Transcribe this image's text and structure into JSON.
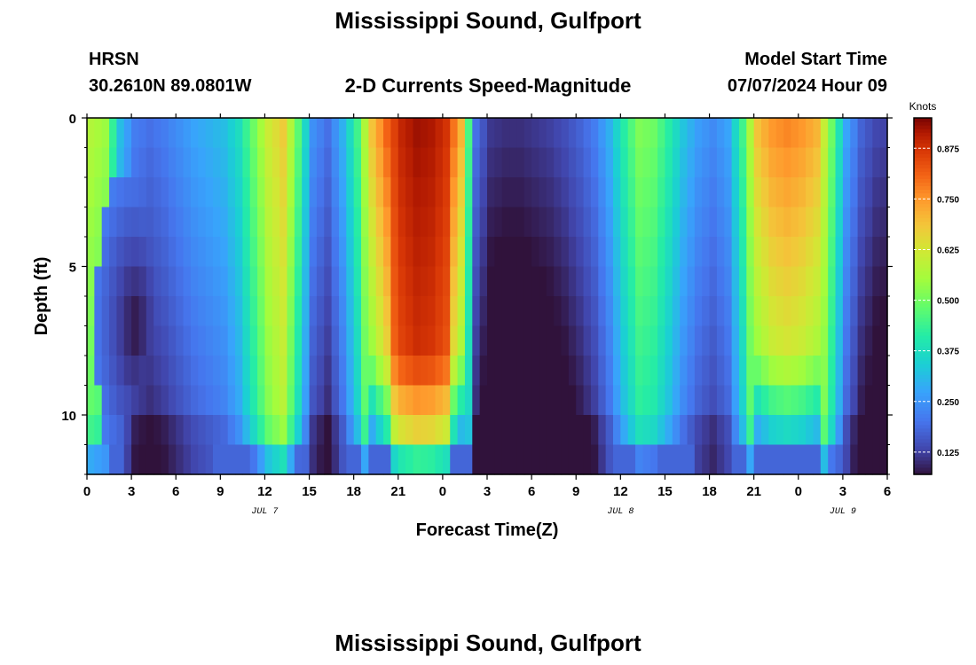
{
  "header": {
    "title": "Mississippi Sound, Gulfport",
    "station_id": "HRSN",
    "coordinates": "30.2610N  89.0801W",
    "subtitle": "2-D Currents Speed-Magnitude",
    "model_start_label": "Model Start Time",
    "model_start_value": "07/07/2024 Hour 09",
    "footer_title": "Mississippi Sound, Gulfport"
  },
  "chart_data": {
    "type": "heatmap",
    "title": "2-D Currents Speed-Magnitude",
    "xlabel": "Forecast Time(Z)",
    "ylabel": "Depth (ft)",
    "x_tick_labels": [
      "0",
      "3",
      "6",
      "9",
      "12",
      "15",
      "18",
      "21",
      "0",
      "3",
      "6",
      "9",
      "12",
      "15",
      "18",
      "21",
      "0",
      "3",
      "6"
    ],
    "x_range_hours": [
      0,
      54
    ],
    "y_tick_labels": [
      "0",
      "5",
      "10"
    ],
    "y_ticks": [
      0,
      5,
      10
    ],
    "ylim": [
      0,
      12
    ],
    "date_labels": [
      {
        "text": "JUL 7",
        "hour": 12
      },
      {
        "text": "JUL 8",
        "hour": 36
      },
      {
        "text": "JUL 9",
        "hour": 51
      }
    ],
    "colorbar": {
      "label": "Knots",
      "min": 0.07,
      "max": 0.95,
      "ticks": [
        "0.125",
        "0.250",
        "0.375",
        "0.500",
        "0.625",
        "0.750",
        "0.875"
      ],
      "tick_values": [
        0.125,
        0.25,
        0.375,
        0.5,
        0.625,
        0.75,
        0.875
      ]
    },
    "depth_rows_ft": [
      0.5,
      1.5,
      2.5,
      3.5,
      4.5,
      5.5,
      6.5,
      7.5,
      8.5,
      9.5,
      10.5,
      11.5
    ],
    "surface_speed_knots": {
      "hours": [
        0,
        1,
        2,
        3,
        4,
        5,
        6,
        7,
        8,
        9,
        10,
        11,
        12,
        13,
        14,
        15,
        16,
        17,
        18,
        19,
        20,
        21,
        22,
        23,
        24,
        25,
        26,
        27,
        28,
        29,
        30,
        31,
        32,
        33,
        34,
        35,
        36,
        37,
        38,
        39,
        40,
        41,
        42,
        43,
        44,
        45,
        46,
        47,
        48,
        49,
        50,
        51,
        52,
        53,
        54
      ],
      "values": [
        0.58,
        0.55,
        0.32,
        0.22,
        0.2,
        0.22,
        0.25,
        0.28,
        0.3,
        0.32,
        0.38,
        0.5,
        0.62,
        0.68,
        0.48,
        0.25,
        0.2,
        0.3,
        0.45,
        0.7,
        0.82,
        0.9,
        0.93,
        0.92,
        0.88,
        0.72,
        0.2,
        0.12,
        0.11,
        0.11,
        0.12,
        0.13,
        0.15,
        0.18,
        0.22,
        0.3,
        0.42,
        0.52,
        0.5,
        0.42,
        0.33,
        0.27,
        0.24,
        0.28,
        0.45,
        0.7,
        0.76,
        0.78,
        0.76,
        0.72,
        0.5,
        0.28,
        0.18,
        0.14,
        0.13
      ]
    },
    "depth_minimum": {
      "hour": 3,
      "depth_ft": 7,
      "value_knots": 0.07
    }
  }
}
